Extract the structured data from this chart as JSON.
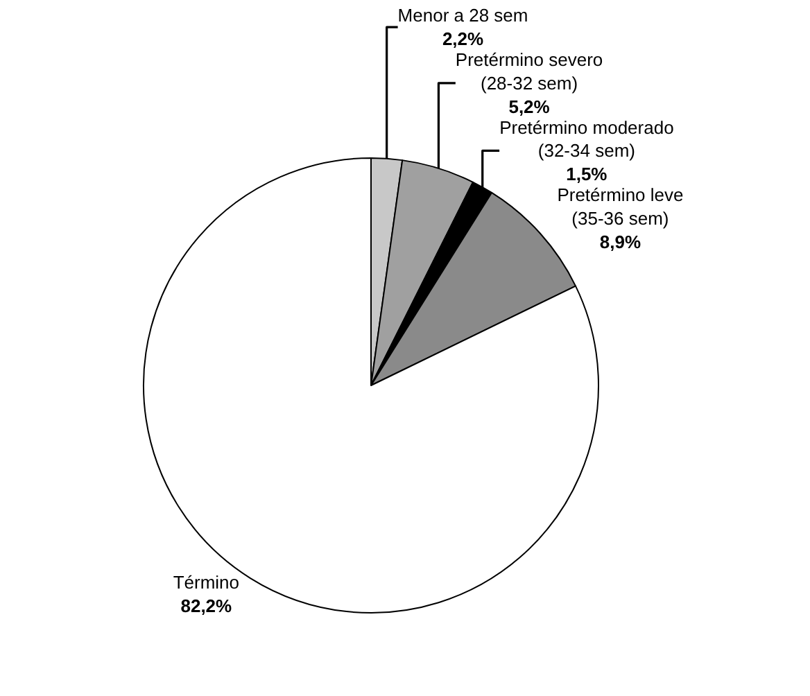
{
  "chart_data": {
    "type": "pie",
    "categories": [
      "Menor a 28 sem",
      "Pretérmino severo (28-32 sem)",
      "Pretérmino moderado (32-34 sem)",
      "Pretérmino leve (35-36 sem)",
      "Término"
    ],
    "values": [
      2.2,
      5.2,
      1.5,
      8.9,
      82.2
    ],
    "value_labels": [
      "2,2%",
      "5,2%",
      "1,5%",
      "8,9%",
      "82,2%"
    ],
    "colors": [
      "#c8c8c8",
      "#a0a0a0",
      "#000000",
      "#8a8a8a",
      "#ffffff"
    ],
    "legend": false
  }
}
